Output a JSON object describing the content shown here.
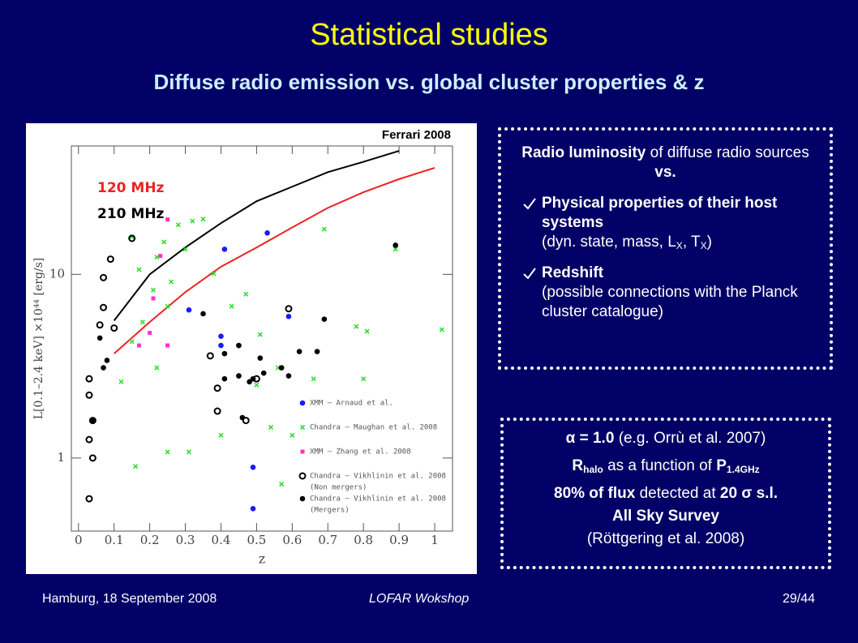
{
  "title": "Statistical studies",
  "subtitle": "Diffuse radio emission vs. global cluster properties & z",
  "credit": "Ferrari 2008",
  "chart_data": {
    "type": "scatter",
    "xlabel": "z",
    "ylabel": "L[0.1–2.4 keV] ×10⁴⁴ [erg/s]",
    "xlim": [
      -0.02,
      1.05
    ],
    "ylim": [
      0.4,
      50
    ],
    "log_y": true,
    "xticks": [
      0,
      0.1,
      0.2,
      0.3,
      0.4,
      0.5,
      0.6,
      0.7,
      0.8,
      0.9,
      1
    ],
    "yticks": [
      1,
      10
    ],
    "lines": [
      {
        "name": "120 MHz",
        "color": "#ee2222",
        "x": [
          0.1,
          0.2,
          0.3,
          0.4,
          0.5,
          0.6,
          0.7,
          0.8,
          0.9,
          1.0
        ],
        "values": [
          3.7,
          5.5,
          8,
          11,
          14,
          18,
          23,
          28,
          33,
          38
        ]
      },
      {
        "name": "210 MHz",
        "color": "#000000",
        "x": [
          0.1,
          0.2,
          0.3,
          0.4,
          0.5,
          0.6,
          0.7,
          0.8,
          0.9
        ],
        "values": [
          5.6,
          10,
          14,
          19,
          25,
          30,
          36,
          41,
          47
        ]
      }
    ],
    "series": [
      {
        "name": "XMM – Arnaud et al.",
        "color": "#1a1aff",
        "marker": "dot",
        "x": [
          0.41,
          0.53,
          0.59,
          0.4,
          0.45,
          0.49,
          0.49,
          0.31,
          0.4,
          0.45
        ],
        "values": [
          13.7,
          16.8,
          5.9,
          4.6,
          2.8,
          0.89,
          0.53,
          6.4,
          4.1,
          4.1
        ]
      },
      {
        "name": "Chandra – Maughan et al. 2008",
        "color": "#33dd33",
        "marker": "cross",
        "x": [
          0.15,
          0.17,
          0.18,
          0.21,
          0.22,
          0.24,
          0.25,
          0.26,
          0.28,
          0.3,
          0.32,
          0.35,
          0.38,
          0.43,
          0.47,
          0.51,
          0.56,
          0.57,
          0.4,
          0.31,
          0.25,
          0.16,
          0.12,
          0.69,
          0.78,
          0.81,
          0.8,
          0.89,
          1.02,
          0.66,
          0.6,
          0.54,
          0.5,
          0.22,
          0.15
        ],
        "values": [
          16,
          10.6,
          5.5,
          8.2,
          12.4,
          15,
          6.7,
          9.1,
          18.6,
          13.7,
          19.5,
          20,
          10.1,
          6.7,
          7.8,
          4.7,
          3.1,
          0.72,
          1.33,
          1.08,
          1.08,
          0.9,
          2.6,
          17.6,
          5.2,
          4.9,
          2.7,
          13.7,
          5,
          2.7,
          1.33,
          1.47,
          2.5,
          3.1,
          4.3
        ]
      },
      {
        "name": "XMM – Zhang et al. 2008",
        "color": "#ff33cc",
        "marker": "square",
        "x": [
          0.25,
          0.23,
          0.21,
          0.2,
          0.17,
          0.25
        ],
        "values": [
          19.9,
          12.6,
          7.4,
          4.8,
          4.1,
          4.1
        ]
      },
      {
        "name": "Chandra – Vikhlinin et al. 2008",
        "note": "(Non mergers)",
        "color": "#000000",
        "marker": "circle",
        "x": [
          0.15,
          0.09,
          0.07,
          0.07,
          0.06,
          0.1,
          0.03,
          0.03,
          0.04,
          0.03,
          0.04,
          0.03,
          0.37,
          0.39,
          0.39,
          0.47,
          0.59,
          0.5
        ],
        "values": [
          15.7,
          12.1,
          9.6,
          6.6,
          5.3,
          5.1,
          2.7,
          2.2,
          1.6,
          1.26,
          1.0,
          0.6,
          3.6,
          2.4,
          1.8,
          1.6,
          6.5,
          2.7
        ]
      },
      {
        "name": "Chandra – Vikhlinin et al. 2008",
        "note": "(Mergers)",
        "color": "#000000",
        "marker": "dot",
        "x": [
          0.89,
          0.35,
          0.06,
          0.07,
          0.08,
          0.04,
          0.41,
          0.45,
          0.51,
          0.57,
          0.62,
          0.67,
          0.69,
          0.52,
          0.59,
          0.45,
          0.49,
          0.41,
          0.48,
          0.46
        ],
        "values": [
          14.4,
          6.1,
          4.5,
          3.1,
          3.4,
          1.6,
          3.7,
          4.1,
          3.5,
          3.1,
          3.8,
          3.8,
          5.7,
          2.9,
          2.8,
          2.8,
          2.7,
          2.7,
          2.6,
          1.66
        ]
      }
    ]
  },
  "box1": {
    "intro_bold": "Radio luminosity",
    "intro_rest": "of diffuse radio sources",
    "intro_vs": "vs.",
    "item1_bold": "Physical properties of their host systems",
    "item1_pre": "(dyn. state, mass, L",
    "item1_sub1": "X",
    "item1_mid": ", T",
    "item1_sub2": "X",
    "item1_end": ")",
    "item2_bold": "Redshift",
    "item2_rest": "(possible connections with the Planck cluster catalogue)"
  },
  "box2": {
    "l1_bold": "α = 1.0",
    "l1_rest": "(e.g. Orrù et al. 2007)",
    "l2_r": "R",
    "l2_sub1": "halo",
    "l2_mid": "as a function of",
    "l2_p": "P",
    "l2_sub2": "1.4GHz",
    "l3_a": "80% of flux",
    "l3_b": "detected at",
    "l3_c": "20 σ s.l.",
    "l4": "All Sky Survey",
    "l5": "(Röttgering et al. 2008)"
  },
  "footer": {
    "left": "Hamburg, 18 September 2008",
    "center": "LOFAR Wokshop",
    "right": "29/44"
  }
}
